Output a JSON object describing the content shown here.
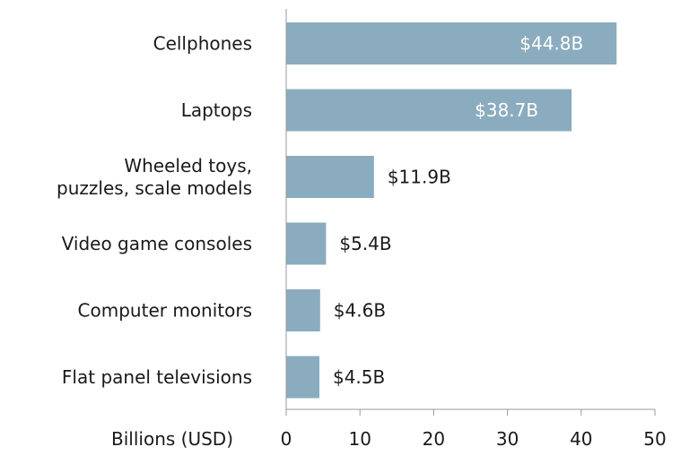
{
  "chart_data": {
    "type": "bar",
    "orientation": "horizontal",
    "categories": [
      [
        "Cellphones"
      ],
      [
        "Laptops"
      ],
      [
        "Wheeled toys,",
        "puzzles, scale models"
      ],
      [
        "Video game consoles"
      ],
      [
        "Computer monitors"
      ],
      [
        "Flat panel televisions"
      ]
    ],
    "values": [
      44.8,
      38.7,
      11.9,
      5.4,
      4.6,
      4.5
    ],
    "value_labels": [
      "$44.8B",
      "$38.7B",
      "$11.9B",
      "$5.4B",
      "$4.6B",
      "$4.5B"
    ],
    "value_label_inside": [
      true,
      true,
      false,
      false,
      false,
      false
    ],
    "xlabel": "Billions (USD)",
    "xlim": [
      0,
      50
    ],
    "xticks": [
      0,
      10,
      20,
      30,
      40,
      50
    ],
    "grid": false,
    "bar_color": "#8aacbe",
    "inside_label_color": "#ffffff",
    "outside_label_color": "#1a1a1a",
    "axis_color": "#9a9a9a"
  }
}
